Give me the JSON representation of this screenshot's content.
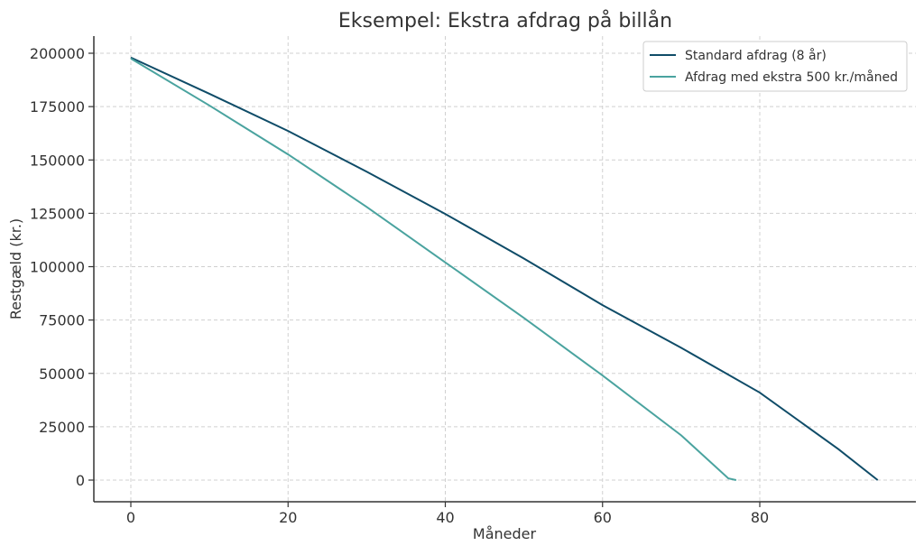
{
  "chart_data": {
    "type": "line",
    "title": "Eksempel: Ekstra afdrag på billån",
    "xlabel": "Måneder",
    "ylabel": "Restgæld (kr.)",
    "xlim": [
      -5,
      100
    ],
    "ylim": [
      -10000,
      210000
    ],
    "xticks": [
      0,
      20,
      40,
      60,
      80
    ],
    "yticks": [
      0,
      25000,
      50000,
      75000,
      100000,
      125000,
      150000,
      175000,
      200000
    ],
    "grid": true,
    "legend_position": "upper right",
    "series": [
      {
        "name": "Standard afdrag (8 år)",
        "color": "#0f4c68",
        "x": [
          0,
          10,
          20,
          30,
          40,
          50,
          60,
          70,
          80,
          90,
          95
        ],
        "y": [
          198000,
          181000,
          163600,
          144500,
          124700,
          103800,
          82000,
          62000,
          41000,
          14500,
          0
        ]
      },
      {
        "name": "Afdrag med ekstra 500 kr./måned",
        "color": "#4aa39f",
        "x": [
          0,
          10,
          20,
          30,
          40,
          50,
          60,
          70,
          76,
          77
        ],
        "y": [
          197500,
          175500,
          152600,
          128000,
          102000,
          76000,
          49000,
          21000,
          800,
          0
        ]
      }
    ]
  }
}
